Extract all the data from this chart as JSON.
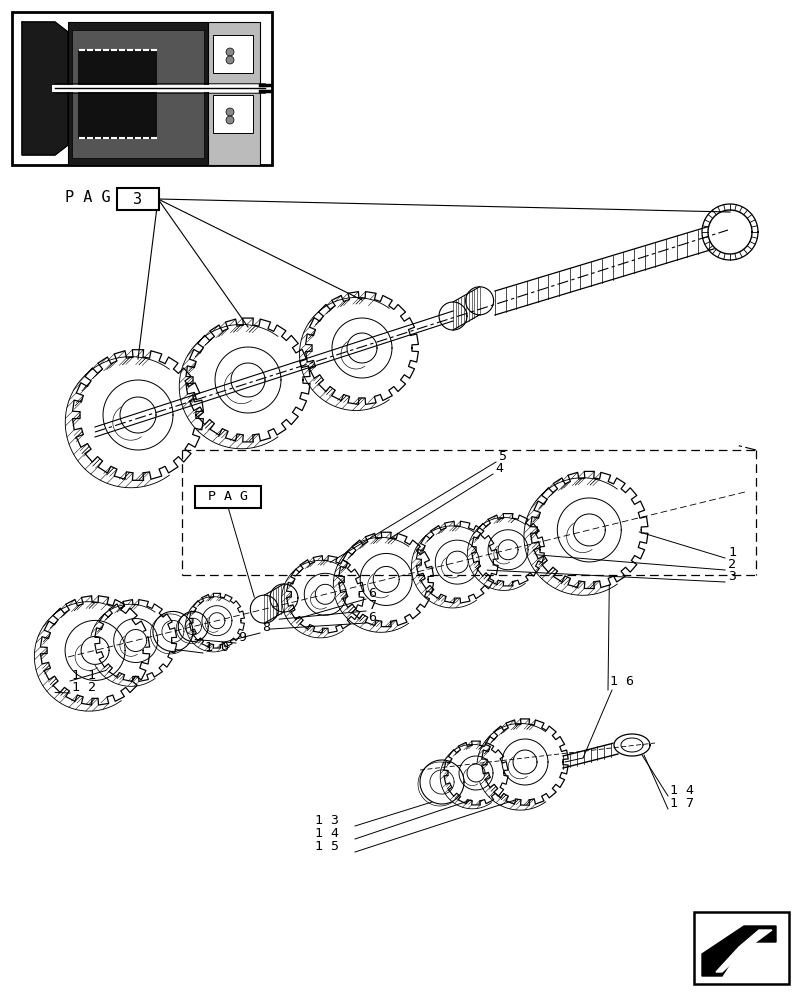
{
  "bg": "#ffffff",
  "lc": "#000000",
  "fw": 8.08,
  "fh": 10.0,
  "dpi": 100,
  "pag_top": "P A G",
  "pag_num": "3",
  "pag_mid": "P A G"
}
